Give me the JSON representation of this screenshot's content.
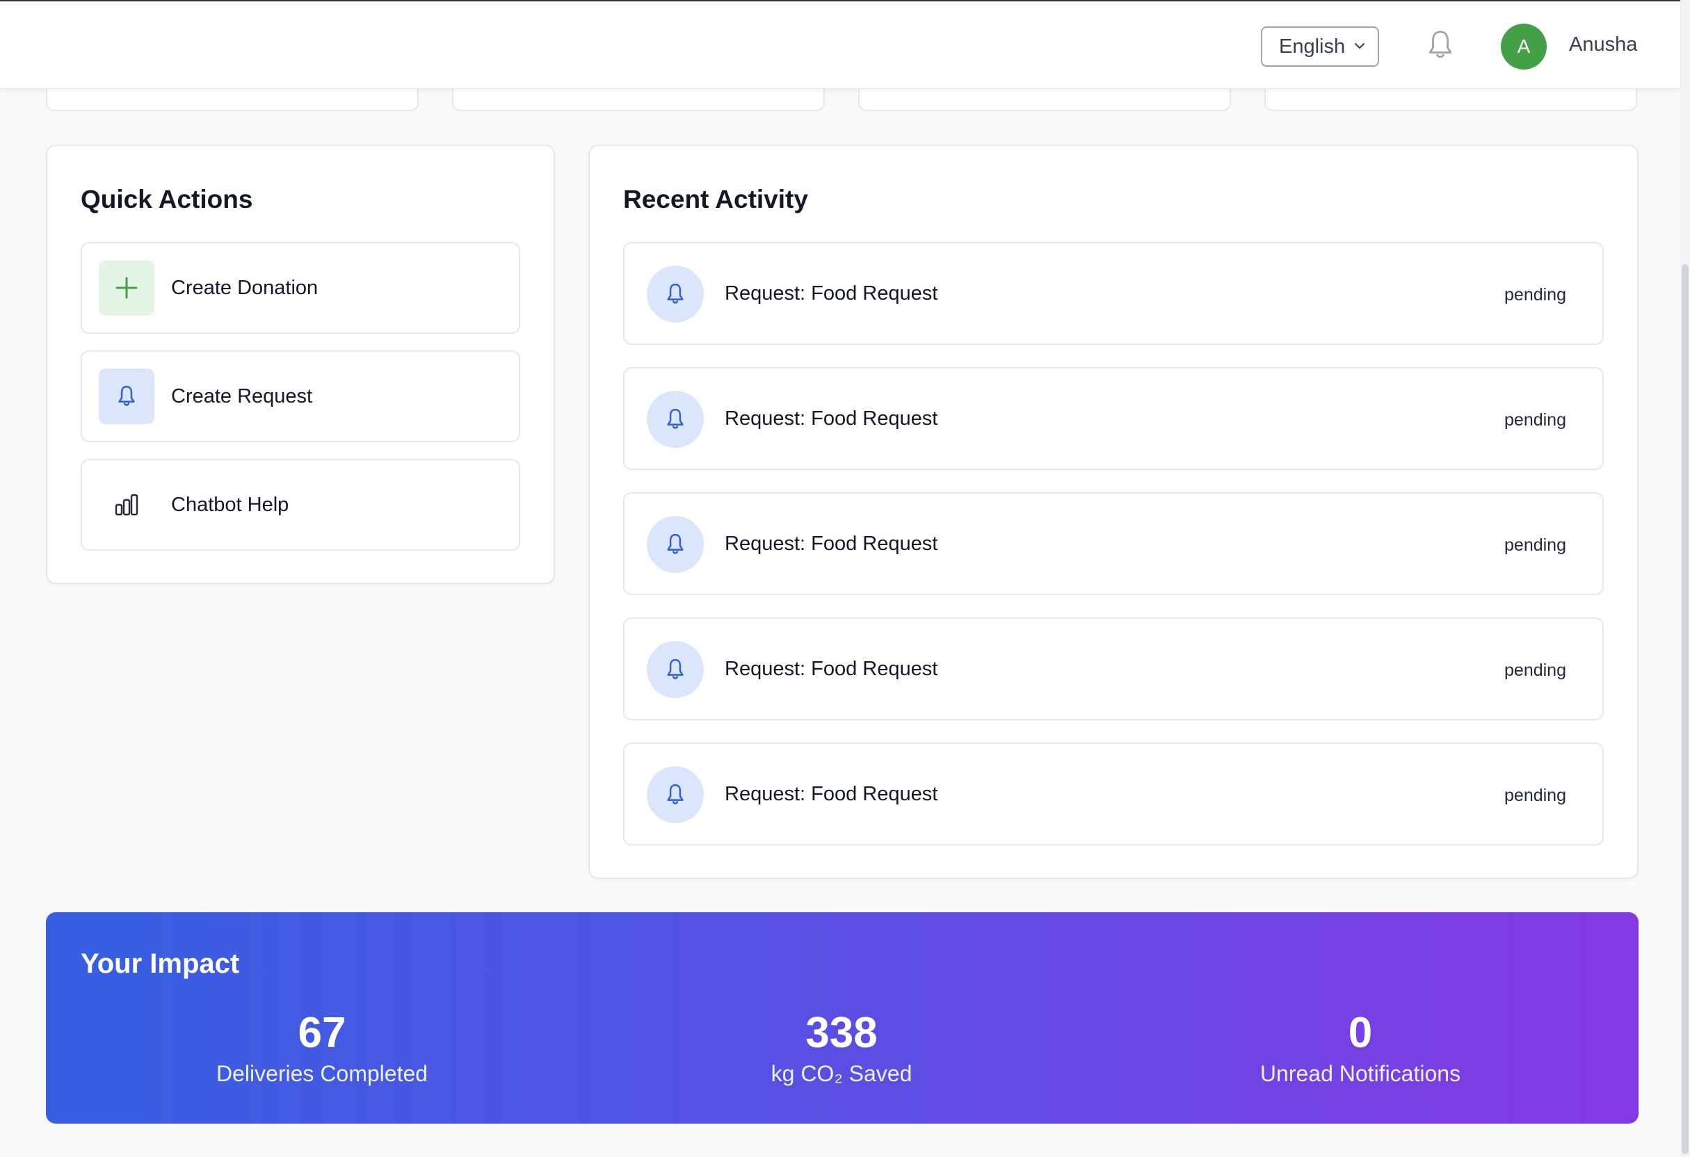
{
  "header": {
    "language": "English",
    "user_initial": "A",
    "user_name": "Anusha"
  },
  "quick_actions": {
    "title": "Quick Actions",
    "items": [
      {
        "label": "Create Donation",
        "icon": "plus-icon"
      },
      {
        "label": "Create Request",
        "icon": "bell-icon"
      },
      {
        "label": "Chatbot Help",
        "icon": "bar-chart-icon"
      }
    ]
  },
  "recent_activity": {
    "title": "Recent Activity",
    "items": [
      {
        "title": "Request: Food Request",
        "status": "pending"
      },
      {
        "title": "Request: Food Request",
        "status": "pending"
      },
      {
        "title": "Request: Food Request",
        "status": "pending"
      },
      {
        "title": "Request: Food Request",
        "status": "pending"
      },
      {
        "title": "Request: Food Request",
        "status": "pending"
      }
    ]
  },
  "impact": {
    "title": "Your Impact",
    "stats": [
      {
        "value": "67",
        "label": "Deliveries Completed"
      },
      {
        "value": "338",
        "label": "kg CO₂ Saved"
      },
      {
        "value": "0",
        "label": "Unread Notifications"
      }
    ]
  },
  "colors": {
    "avatar": "#43a047",
    "impact_gradient_start": "#3660e1",
    "impact_gradient_end": "#8439e2",
    "bell_icon": "#2f5fd6",
    "plus_icon": "#43a047"
  }
}
